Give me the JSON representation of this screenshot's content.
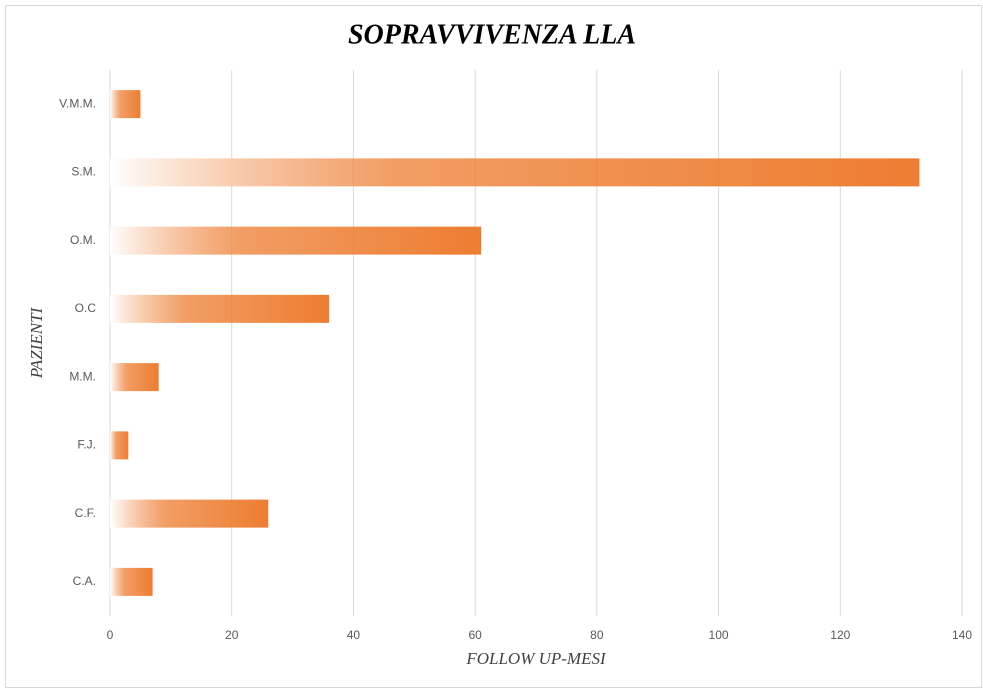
{
  "chart_data": {
    "type": "bar",
    "orientation": "horizontal",
    "title": "SOPRAVVIVENZA LLA",
    "x_label": "FOLLOW UP-MESI",
    "y_label": "PAZIENTI",
    "categories": [
      "C.A.",
      "C.F.",
      "F.J.",
      "M.M.",
      "O.C",
      "O.M.",
      "S.M.",
      "V.M.M."
    ],
    "values": [
      7,
      26,
      3,
      8,
      36,
      61,
      133,
      5
    ],
    "color": "#ed7d31",
    "xlim": [
      0,
      140
    ],
    "xticks": [
      0,
      20,
      40,
      60,
      80,
      100,
      120,
      140
    ],
    "grid": true
  }
}
